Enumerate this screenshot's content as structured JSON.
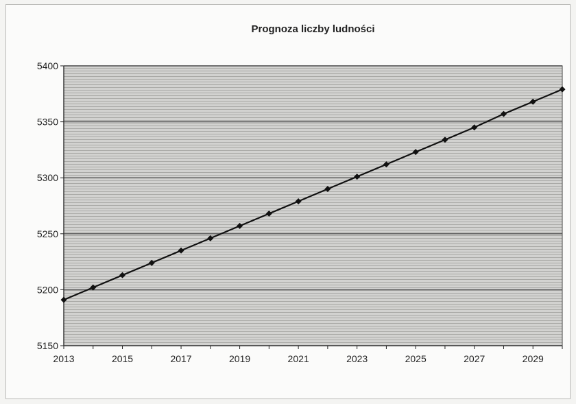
{
  "chart_data": {
    "type": "line",
    "title": "Prognoza liczby ludności",
    "xlabel": "",
    "ylabel": "",
    "xlim": [
      2013,
      2030
    ],
    "ylim": [
      5150,
      5400
    ],
    "yticks": [
      5150,
      5200,
      5250,
      5300,
      5350,
      5400
    ],
    "xticks": [
      2013,
      2015,
      2017,
      2019,
      2021,
      2023,
      2025,
      2027,
      2029
    ],
    "grid": "horizontal",
    "legend": "none",
    "series": [
      {
        "x": [
          2013,
          2014,
          2015,
          2016,
          2017,
          2018,
          2019,
          2020,
          2021,
          2022,
          2023,
          2024,
          2025,
          2026,
          2027,
          2028,
          2029,
          2030
        ],
        "values": [
          5191,
          5202,
          5213,
          5224,
          5235,
          5246,
          5257,
          5268,
          5279,
          5290,
          5301,
          5312,
          5323,
          5334,
          5345,
          5357,
          5368,
          5379
        ]
      }
    ],
    "colors": {
      "line": "#111111",
      "plot_background": "#cfcfcf",
      "gridline": "#555555"
    }
  }
}
